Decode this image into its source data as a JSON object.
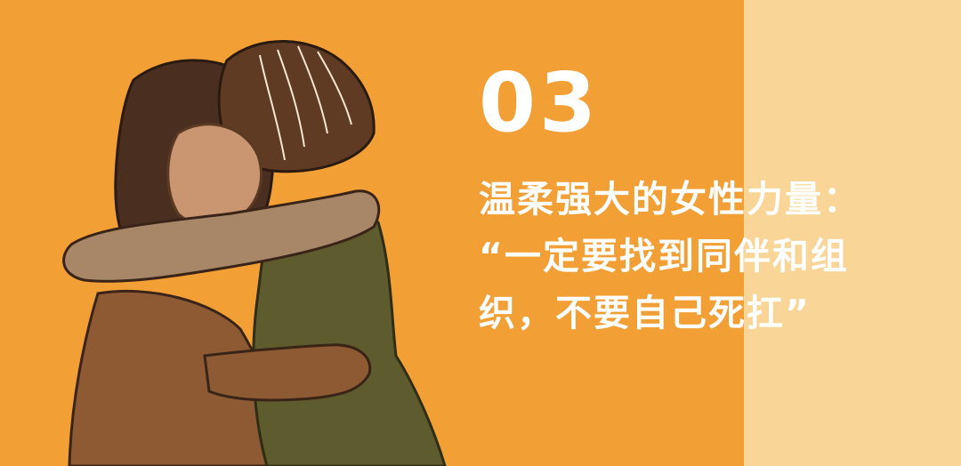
{
  "slide": {
    "number": "03",
    "lines": [
      "温柔强大的女性力量：",
      "“一定要找到同伴和组",
      "织，不要自己死扛”"
    ]
  },
  "colors": {
    "background": "#f2a035",
    "side_panel": "#f9d597",
    "text": "#ffffff",
    "hair_left": "#4a2e1f",
    "hair_right": "#5e3b22",
    "skin_face": "#c99671",
    "sleeve": "#a78768",
    "top_left": "#8e5a33",
    "dress_right": "#5e5b2e"
  },
  "illustration": {
    "icon": "two-women-hugging-illustration"
  }
}
